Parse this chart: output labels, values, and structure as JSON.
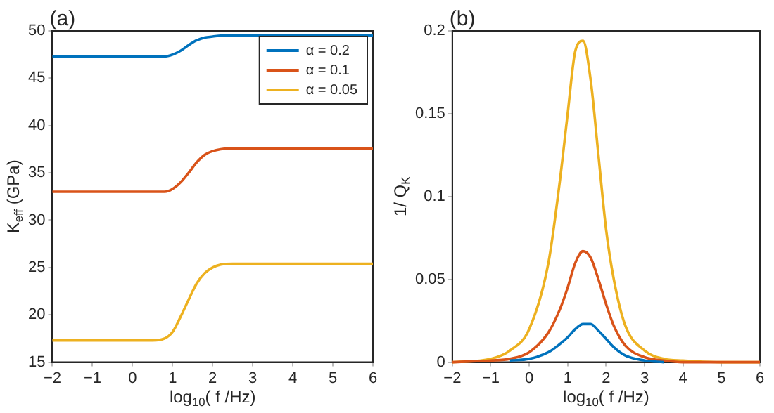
{
  "chart_data": [
    {
      "type": "line",
      "title": "(a)",
      "xlabel": "log$_{10}$( f /Hz)",
      "ylabel": "K$_{eff}$ (GPa)",
      "x": [
        -2,
        -1,
        -0.5,
        0,
        0.5,
        0.8,
        1,
        1.2,
        1.4,
        1.6,
        1.8,
        2,
        2.2,
        2.5,
        3,
        3.5,
        4,
        5,
        6
      ],
      "xlim": [
        -2,
        6
      ],
      "xticks": [
        -2,
        -1,
        0,
        1,
        2,
        3,
        4,
        5,
        6
      ],
      "ylim": [
        15,
        50
      ],
      "yticks": [
        15,
        20,
        25,
        30,
        35,
        40,
        45,
        50
      ],
      "grid": false,
      "legend": "top right",
      "marker": "none",
      "line_style": "solid",
      "series": [
        {
          "name": "α = 0.2",
          "color": "#0072bd",
          "values": [
            47.3,
            47.3,
            47.3,
            47.3,
            47.3,
            47.3,
            47.5,
            47.9,
            48.5,
            49.0,
            49.3,
            49.4,
            49.5,
            49.5,
            49.5,
            49.5,
            49.5,
            49.5,
            49.5
          ]
        },
        {
          "name": "α = 0.1",
          "color": "#d95319",
          "values": [
            33,
            33,
            33,
            33,
            33,
            33,
            33.3,
            34.0,
            35.0,
            36.1,
            36.9,
            37.3,
            37.5,
            37.6,
            37.6,
            37.6,
            37.6,
            37.6,
            37.6
          ]
        },
        {
          "name": "α = 0.05",
          "color": "#edb120",
          "values": [
            17.3,
            17.3,
            17.3,
            17.3,
            17.3,
            17.5,
            18.2,
            19.8,
            21.6,
            23.3,
            24.4,
            25.0,
            25.3,
            25.4,
            25.4,
            25.4,
            25.4,
            25.4,
            25.4
          ]
        }
      ]
    },
    {
      "type": "line",
      "title": "(b)",
      "xlabel": "log$_{10}$( f /Hz)",
      "ylabel": "1/ Q$_{K}$",
      "x": [
        -2,
        -1,
        -0.5,
        0,
        0.5,
        0.8,
        1,
        1.2,
        1.4,
        1.6,
        1.8,
        2,
        2.2,
        2.5,
        3,
        3.5,
        4,
        5,
        6
      ],
      "xlim": [
        -2,
        6
      ],
      "xticks": [
        -2,
        -1,
        0,
        1,
        2,
        3,
        4,
        5,
        6
      ],
      "ylim": [
        0,
        0.2
      ],
      "yticks": [
        0,
        0.05,
        0.1,
        0.15,
        0.2
      ],
      "grid": false,
      "marker": "none",
      "line_style": "solid",
      "series": [
        {
          "color": "#0072bd",
          "values": [
            null,
            null,
            0.001,
            0.002,
            0.006,
            0.011,
            0.015,
            0.02,
            0.023,
            0.023,
            0.019,
            0.014,
            0.009,
            0.004,
            0.001,
            0,
            null,
            null,
            null
          ]
        },
        {
          "color": "#d95319",
          "values": [
            0,
            0.001,
            0.002,
            0.006,
            0.018,
            0.032,
            0.045,
            0.06,
            0.067,
            0.063,
            0.05,
            0.035,
            0.022,
            0.01,
            0.003,
            0.001,
            0,
            0,
            0
          ]
        },
        {
          "color": "#edb120",
          "values": [
            0,
            0.002,
            0.007,
            0.02,
            0.06,
            0.11,
            0.15,
            0.188,
            0.194,
            0.17,
            0.125,
            0.08,
            0.05,
            0.022,
            0.007,
            0.002,
            0.001,
            0,
            0
          ]
        }
      ]
    }
  ]
}
